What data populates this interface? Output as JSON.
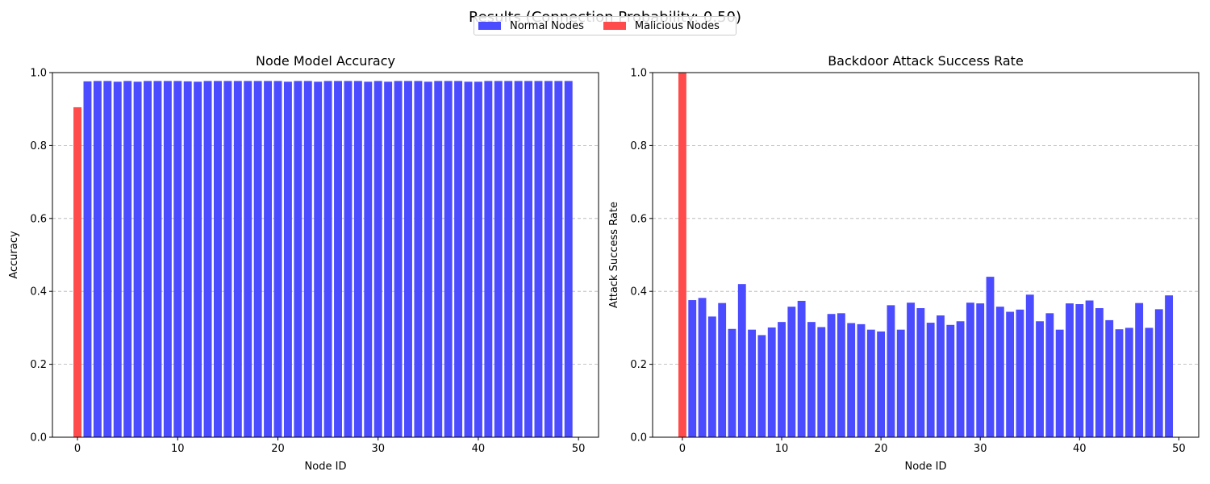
{
  "figure": {
    "suptitle": "Results (Connection Probability: 0.50)"
  },
  "legend": {
    "placement": "upper-center",
    "items": [
      {
        "label": "Normal Nodes",
        "color": "#4b4bff"
      },
      {
        "label": "Malicious Nodes",
        "color": "#ff4b4b"
      }
    ]
  },
  "chart_data": [
    {
      "type": "bar",
      "title": "Node Model Accuracy",
      "xlabel": "Node ID",
      "ylabel": "Accuracy",
      "xlim": [
        -2.5,
        52
      ],
      "ylim": [
        0,
        1.0
      ],
      "xticks": [
        0,
        10,
        20,
        30,
        40,
        50
      ],
      "yticks": [
        0.0,
        0.2,
        0.4,
        0.6,
        0.8,
        1.0
      ],
      "grid": "y-dashed",
      "x": [
        0,
        1,
        2,
        3,
        4,
        5,
        6,
        7,
        8,
        9,
        10,
        11,
        12,
        13,
        14,
        15,
        16,
        17,
        18,
        19,
        20,
        21,
        22,
        23,
        24,
        25,
        26,
        27,
        28,
        29,
        30,
        31,
        32,
        33,
        34,
        35,
        36,
        37,
        38,
        39,
        40,
        41,
        42,
        43,
        44,
        45,
        46,
        47,
        48,
        49
      ],
      "values": [
        0.905,
        0.976,
        0.977,
        0.977,
        0.975,
        0.977,
        0.975,
        0.977,
        0.977,
        0.977,
        0.977,
        0.976,
        0.975,
        0.977,
        0.977,
        0.977,
        0.977,
        0.977,
        0.977,
        0.977,
        0.977,
        0.975,
        0.977,
        0.977,
        0.975,
        0.977,
        0.977,
        0.977,
        0.977,
        0.975,
        0.977,
        0.975,
        0.977,
        0.977,
        0.977,
        0.975,
        0.977,
        0.977,
        0.977,
        0.975,
        0.975,
        0.977,
        0.977,
        0.977,
        0.977,
        0.977,
        0.977,
        0.977,
        0.977,
        0.977
      ],
      "malicious": [
        0
      ]
    },
    {
      "type": "bar",
      "title": "Backdoor Attack Success Rate",
      "xlabel": "Node ID",
      "ylabel": "Attack Success Rate",
      "xlim": [
        -3,
        52
      ],
      "ylim": [
        0,
        1.0
      ],
      "xticks": [
        0,
        10,
        20,
        30,
        40,
        50
      ],
      "yticks": [
        0.0,
        0.2,
        0.4,
        0.6,
        0.8,
        1.0
      ],
      "grid": "y-dashed",
      "x": [
        0,
        1,
        2,
        3,
        4,
        5,
        6,
        7,
        8,
        9,
        10,
        11,
        12,
        13,
        14,
        15,
        16,
        17,
        18,
        19,
        20,
        21,
        22,
        23,
        24,
        25,
        26,
        27,
        28,
        29,
        30,
        31,
        32,
        33,
        34,
        35,
        36,
        37,
        38,
        39,
        40,
        41,
        42,
        43,
        44,
        45,
        46,
        47,
        48,
        49
      ],
      "values": [
        1.0,
        0.376,
        0.382,
        0.331,
        0.368,
        0.297,
        0.42,
        0.295,
        0.28,
        0.301,
        0.316,
        0.358,
        0.374,
        0.316,
        0.302,
        0.338,
        0.34,
        0.313,
        0.31,
        0.295,
        0.29,
        0.362,
        0.295,
        0.369,
        0.354,
        0.314,
        0.334,
        0.308,
        0.318,
        0.369,
        0.367,
        0.44,
        0.358,
        0.344,
        0.35,
        0.391,
        0.318,
        0.34,
        0.295,
        0.367,
        0.365,
        0.375,
        0.354,
        0.321,
        0.296,
        0.3,
        0.368,
        0.3,
        0.351,
        0.389
      ],
      "malicious": [
        0
      ]
    }
  ]
}
